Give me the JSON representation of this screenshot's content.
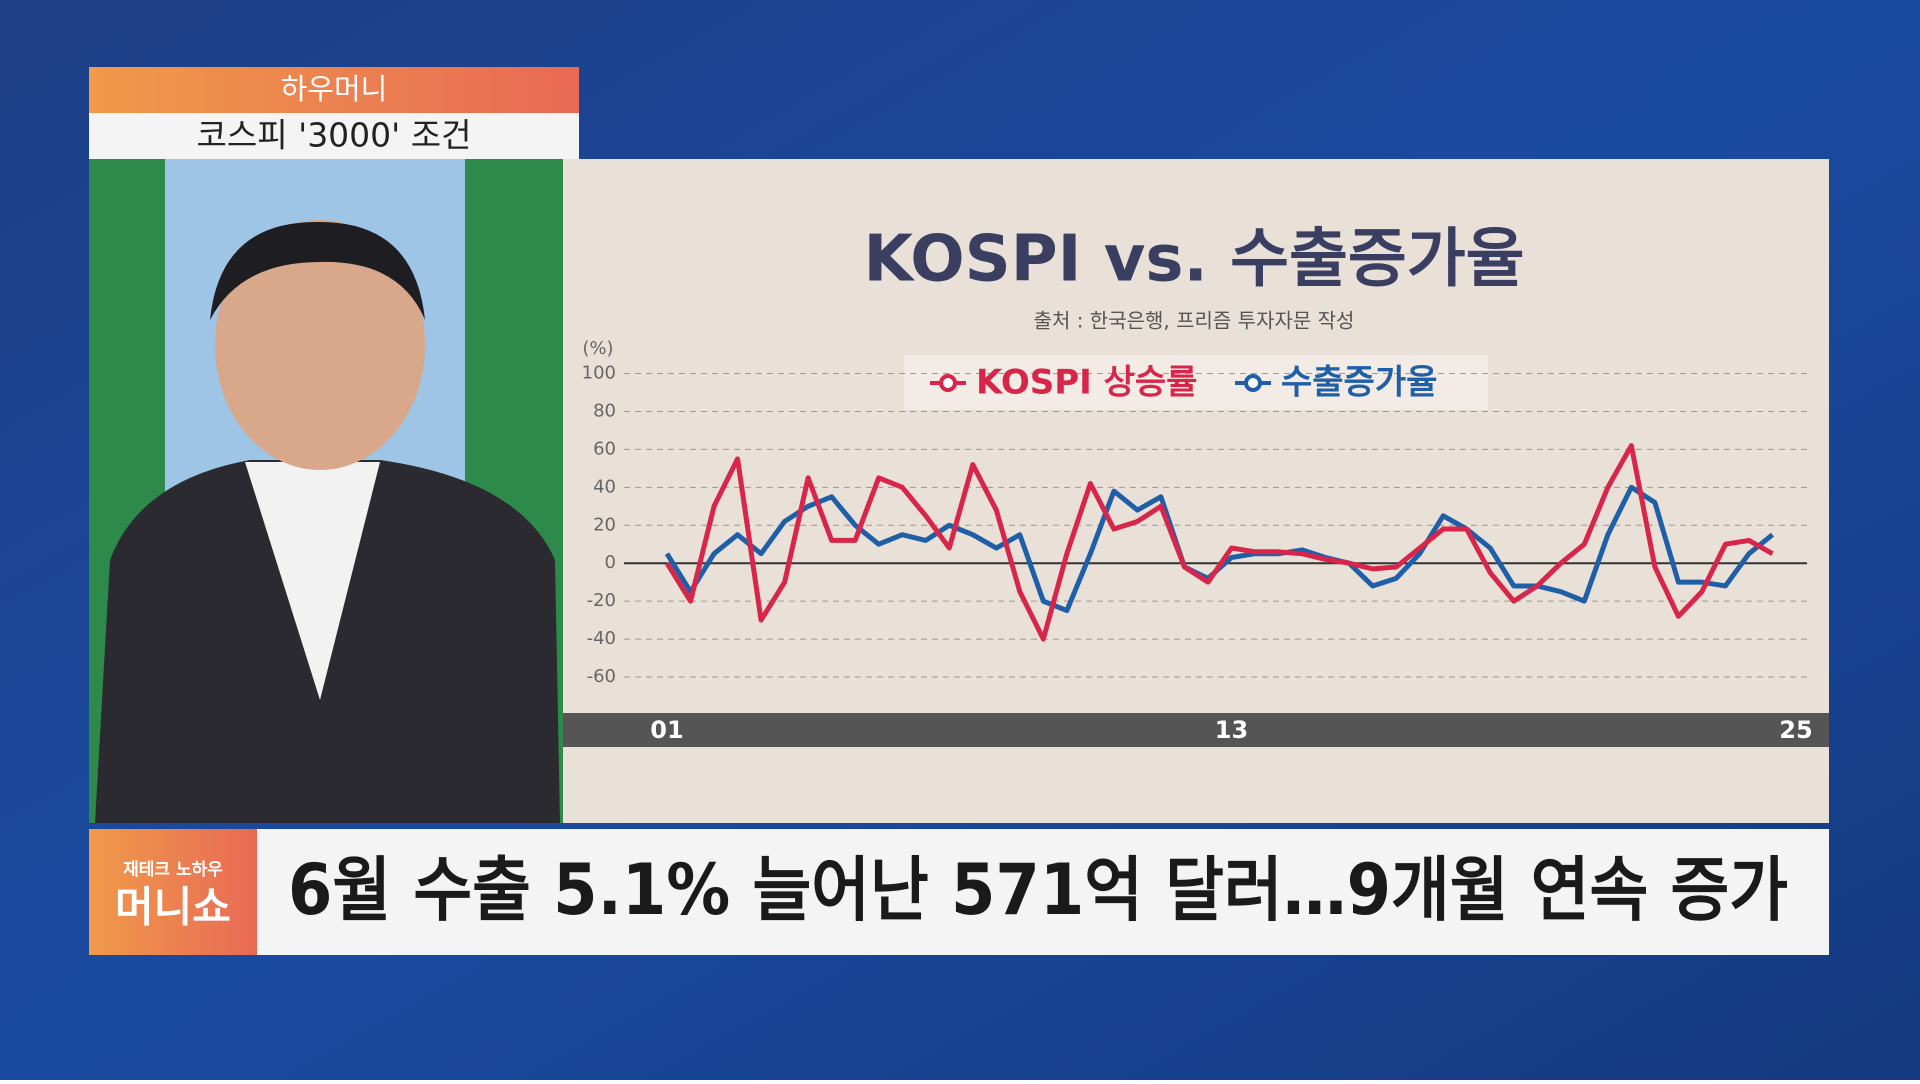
{
  "program": {
    "segment": "하우머니",
    "topic": "코스피 '3000' 조건"
  },
  "chart_data": {
    "type": "line",
    "title": "KOSPI vs. 수출증가율",
    "subtitle": "출처 : 한국은행, 프리즘 투자자문 작성",
    "y_unit": "(%)",
    "categories": [
      "01",
      null,
      null,
      null,
      null,
      null,
      null,
      null,
      null,
      null,
      null,
      null,
      null,
      null,
      null,
      null,
      null,
      null,
      null,
      null,
      null,
      null,
      null,
      null,
      "13",
      null,
      null,
      null,
      null,
      null,
      null,
      null,
      null,
      null,
      null,
      null,
      null,
      null,
      null,
      null,
      null,
      null,
      null,
      null,
      null,
      null,
      null,
      null,
      "25"
    ],
    "series": [
      {
        "name": "KOSPI 상승률",
        "color": "#d7264a",
        "values": [
          0,
          -20,
          30,
          55,
          -30,
          -10,
          45,
          12,
          12,
          45,
          40,
          25,
          8,
          52,
          28,
          -15,
          -40,
          5,
          42,
          18,
          22,
          30,
          -2,
          -10,
          8,
          6,
          6,
          5,
          2,
          0,
          -3,
          -2,
          8,
          18,
          18,
          -5,
          -20,
          -12,
          0,
          10,
          40,
          62,
          -2,
          -28,
          -15,
          10,
          12,
          5,
          null
        ]
      },
      {
        "name": "수출증가율",
        "color": "#1f5fa8",
        "values": [
          5,
          -15,
          5,
          15,
          5,
          22,
          30,
          35,
          20,
          10,
          15,
          12,
          20,
          15,
          8,
          15,
          -20,
          -25,
          5,
          38,
          28,
          35,
          -2,
          -8,
          3,
          5,
          5,
          7,
          3,
          0,
          -12,
          -8,
          5,
          25,
          18,
          8,
          -12,
          -12,
          -15,
          -20,
          15,
          40,
          32,
          -10,
          -10,
          -12,
          5,
          15,
          null
        ]
      }
    ],
    "ylim": [
      -60,
      100
    ],
    "yticks": [
      -60,
      -40,
      -20,
      0,
      20,
      40,
      60,
      80,
      100
    ],
    "grid": true
  },
  "caption": {
    "badge": "재테크 노하우",
    "show": "머니쇼",
    "headline": "6월 수출 5.1% 늘어난 571억 달러…9개월 연속 증가"
  }
}
